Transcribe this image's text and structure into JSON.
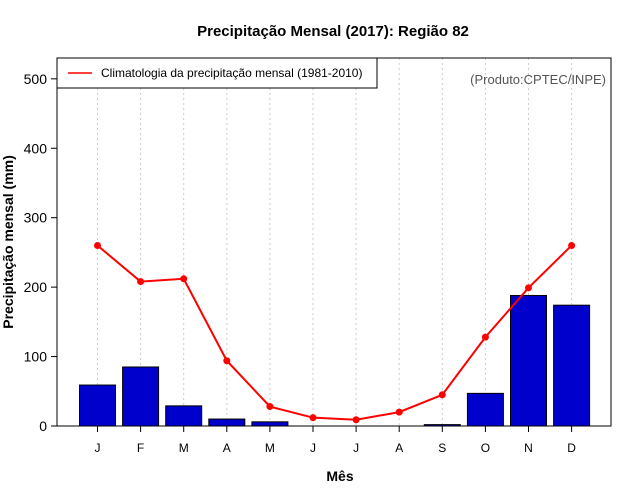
{
  "chart_data": {
    "type": "bar",
    "title": "Precipitação Mensal (2017): Região 82",
    "xlabel": "Mês",
    "ylabel": "Precipitação mensal (mm)",
    "categories": [
      "J",
      "F",
      "M",
      "A",
      "M",
      "J",
      "J",
      "A",
      "S",
      "O",
      "N",
      "D"
    ],
    "ylim": [
      0,
      530
    ],
    "yticks": [
      0,
      100,
      200,
      300,
      400,
      500
    ],
    "grid": "vertical-dotted",
    "legend_position": "top-left",
    "annotation": "(Produto:CPTEC/INPE)",
    "series": [
      {
        "name": "Precipitação mensal 2017",
        "kind": "bar",
        "color": "#0000cc",
        "values": [
          59,
          85,
          29,
          10,
          6,
          0,
          0,
          0,
          2,
          47,
          188,
          174
        ]
      },
      {
        "name": "Climatologia da precipitação mensal (1981-2010)",
        "kind": "line",
        "color": "#ff0000",
        "values": [
          260,
          208,
          212,
          94,
          28,
          12,
          9,
          20,
          45,
          128,
          199,
          260
        ]
      }
    ]
  }
}
